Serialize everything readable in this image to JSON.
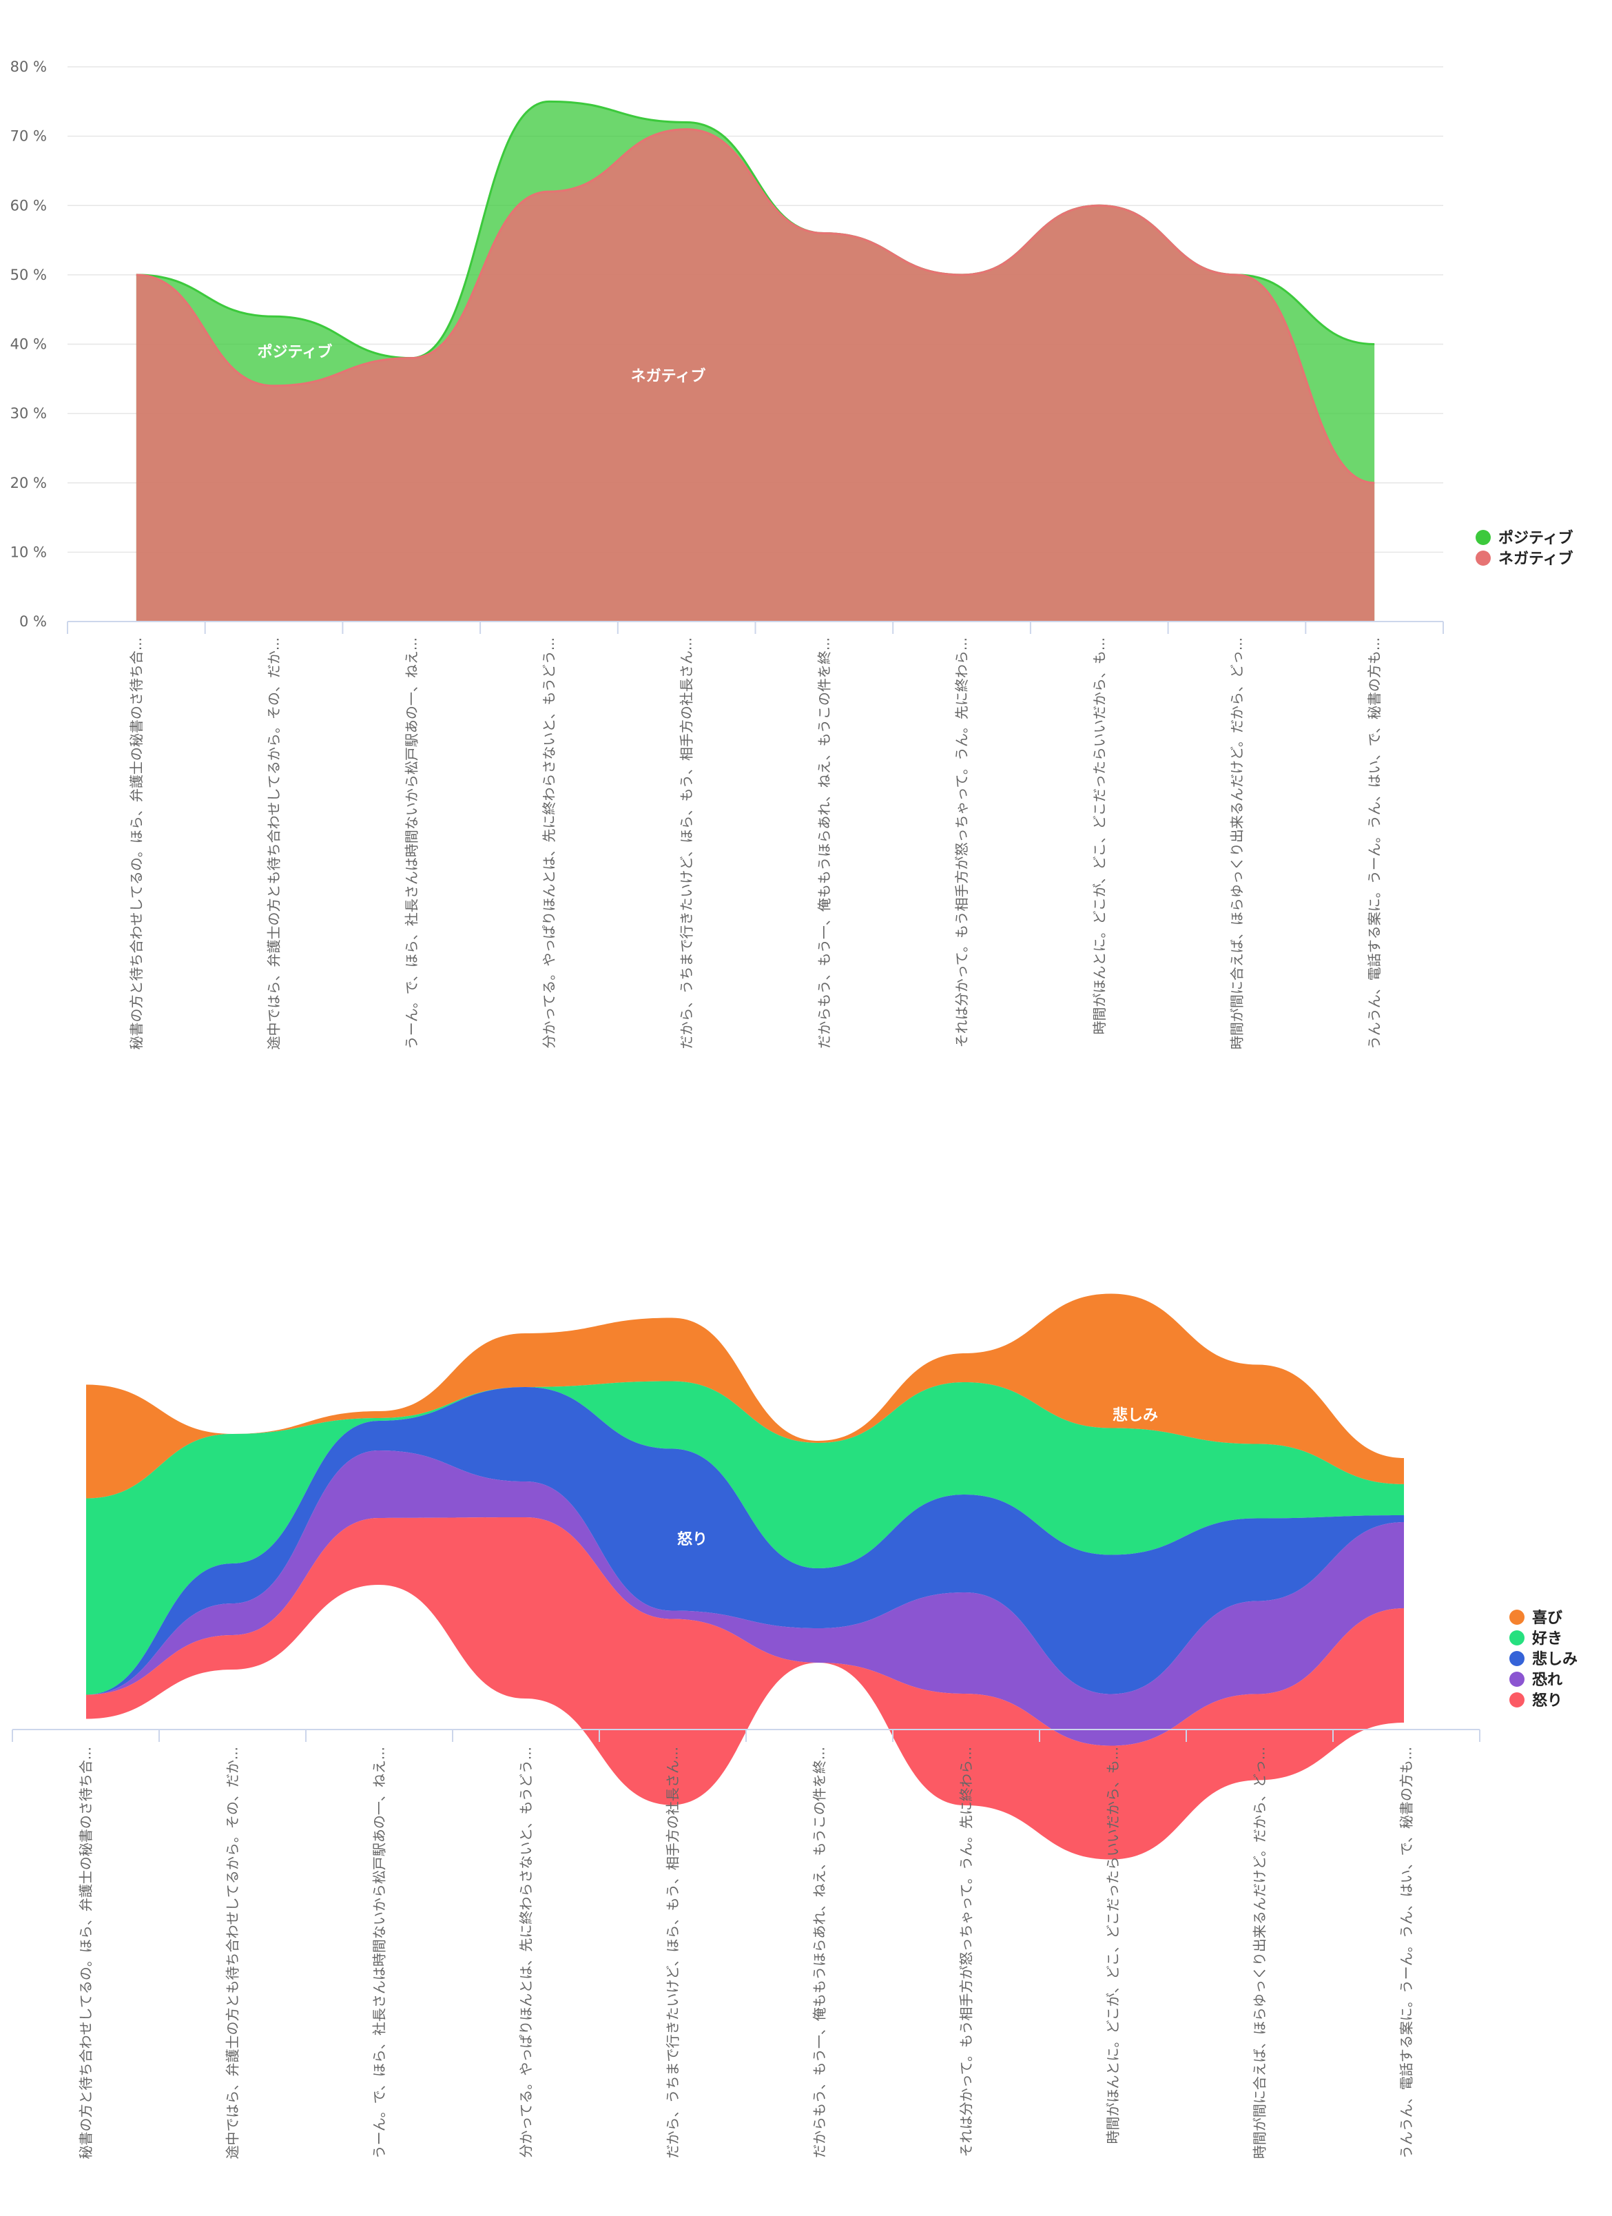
{
  "chart_data": [
    {
      "type": "area",
      "categories": [
        "秘書の方と待ち合わせしてるの。ほら、弁護士の秘書のさ待ち合...",
        "途中ではら、弁護士の方とも待ち合わせしてるから。その、だか...",
        "うーん。で、ほら、社長さんは時間ないから松戸駅あの一、ねえ...",
        "分かってる。やっぱりほんとは、先に終わらさないと、もうどう...",
        "だから、うちまで行きたいけど、ほら、もう、相手方の社長さん...",
        "だからもう、もう一、俺ももうほらあれ、ねえ、もうこの件を終...",
        "それは分かって。もう相手方が怒っちゃって。うん。先に終わら...",
        "時間がほんとに。どこが、どこ、どこだったらいいだから、も...",
        "時間が間に合えば、ほらゆっくり出来るんだけど。だから、どっ...",
        "うんうん、電話する案に。うーん。うん、はい、で、秘書の方も..."
      ],
      "series": [
        {
          "name": "ポジティブ",
          "color": "#3cc93c",
          "values": [
            50,
            44,
            38,
            75,
            72,
            56,
            50,
            60,
            50,
            40
          ]
        },
        {
          "name": "ネガティブ",
          "color": "#e67373",
          "values": [
            50,
            34,
            38,
            62,
            71,
            56,
            50,
            60,
            50,
            20
          ]
        }
      ],
      "y_ticks": [
        "0 %",
        "10 %",
        "20 %",
        "30 %",
        "40 %",
        "50 %",
        "60 %",
        "70 %",
        "80 %"
      ],
      "ylim": [
        0,
        80
      ],
      "grid": true,
      "legend_position": "right"
    },
    {
      "type": "streamgraph",
      "categories": [
        "秘書の方と待ち合わせしてるの。ほら、弁護士の秘書のさ待ち合...",
        "途中ではら、弁護士の方とも待ち合わせしてるから。その、だか...",
        "うーん。で、ほら、社長さんは時間ないから松戸駅あの一、ねえ...",
        "分かってる。やっぱりほんとは、先に終わらさないと、もうどう...",
        "だから、うちまで行きたいけど、ほら、もう、相手方の社長さん...",
        "だからもう、もう一、俺ももうほらあれ、ねえ、もうこの件を終...",
        "それは分かって。もう相手方が怒っちゃって。うん。先に終わら...",
        "時間がほんとに。どこが、どこ、どこだったらいいだから、も...",
        "時間が間に合えば、ほらゆっくり出来るんだけど。だから、どっ...",
        "うんうん、電話する案に。うーん。うん、はい、で、秘書の方も..."
      ],
      "series": [
        {
          "name": "喜び",
          "color": "#f5822e",
          "values": [
            165,
            0,
            10,
            78,
            92,
            3,
            42,
            195,
            115,
            38
          ]
        },
        {
          "name": "好き",
          "color": "#26e07f",
          "values": [
            285,
            188,
            4,
            0,
            98,
            182,
            163,
            184,
            108,
            45
          ]
        },
        {
          "name": "悲しみ",
          "color": "#3563d8",
          "values": [
            0,
            58,
            43,
            137,
            235,
            87,
            142,
            202,
            120,
            10
          ]
        },
        {
          "name": "恐れ",
          "color": "#8b55d1",
          "values": [
            0,
            46,
            98,
            52,
            12,
            50,
            147,
            75,
            135,
            125
          ]
        },
        {
          "name": "怒り",
          "color": "#fc5a64",
          "values": [
            35,
            50,
            97,
            263,
            270,
            0,
            162,
            165,
            125,
            166
          ]
        }
      ],
      "legend_position": "right"
    }
  ]
}
